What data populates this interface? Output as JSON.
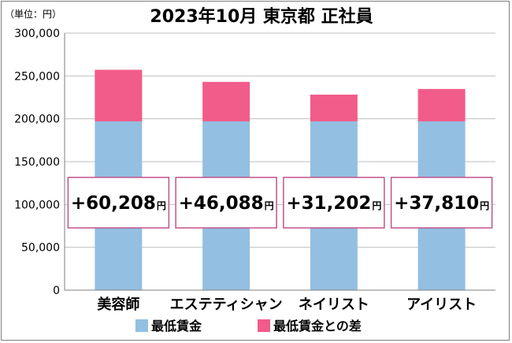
{
  "unit_label": "（単位：円）",
  "chart_data": {
    "type": "bar",
    "stacked": true,
    "title": "2023年10月 東京都 正社員",
    "categories": [
      "美容師",
      "エステティシャン",
      "ネイリスト",
      "アイリスト"
    ],
    "series": [
      {
        "name": "最低賃金",
        "color": "#93bfe2",
        "values": [
          197000,
          197000,
          197000,
          197000
        ]
      },
      {
        "name": "最低賃金との差",
        "color": "#f15c8a",
        "values": [
          60208,
          46088,
          31202,
          37810
        ]
      }
    ],
    "annotations": [
      "+60,208円",
      "+46,088円",
      "+31,202円",
      "+37,810円"
    ],
    "annotation_parts": [
      {
        "number": "+60,208",
        "unit": "円"
      },
      {
        "number": "+46,088",
        "unit": "円"
      },
      {
        "number": "+31,202",
        "unit": "円"
      },
      {
        "number": "+37,810",
        "unit": "円"
      }
    ],
    "yticks": [
      "0",
      "50,000",
      "100,000",
      "150,000",
      "200,000",
      "250,000",
      "300,000"
    ],
    "ylim": [
      0,
      300000
    ],
    "grid": true,
    "legend_position": "bottom",
    "colors": {
      "grid": "#bfbfbf",
      "axis": "#7f7f7f",
      "annotation_border": "#c0548c"
    }
  }
}
